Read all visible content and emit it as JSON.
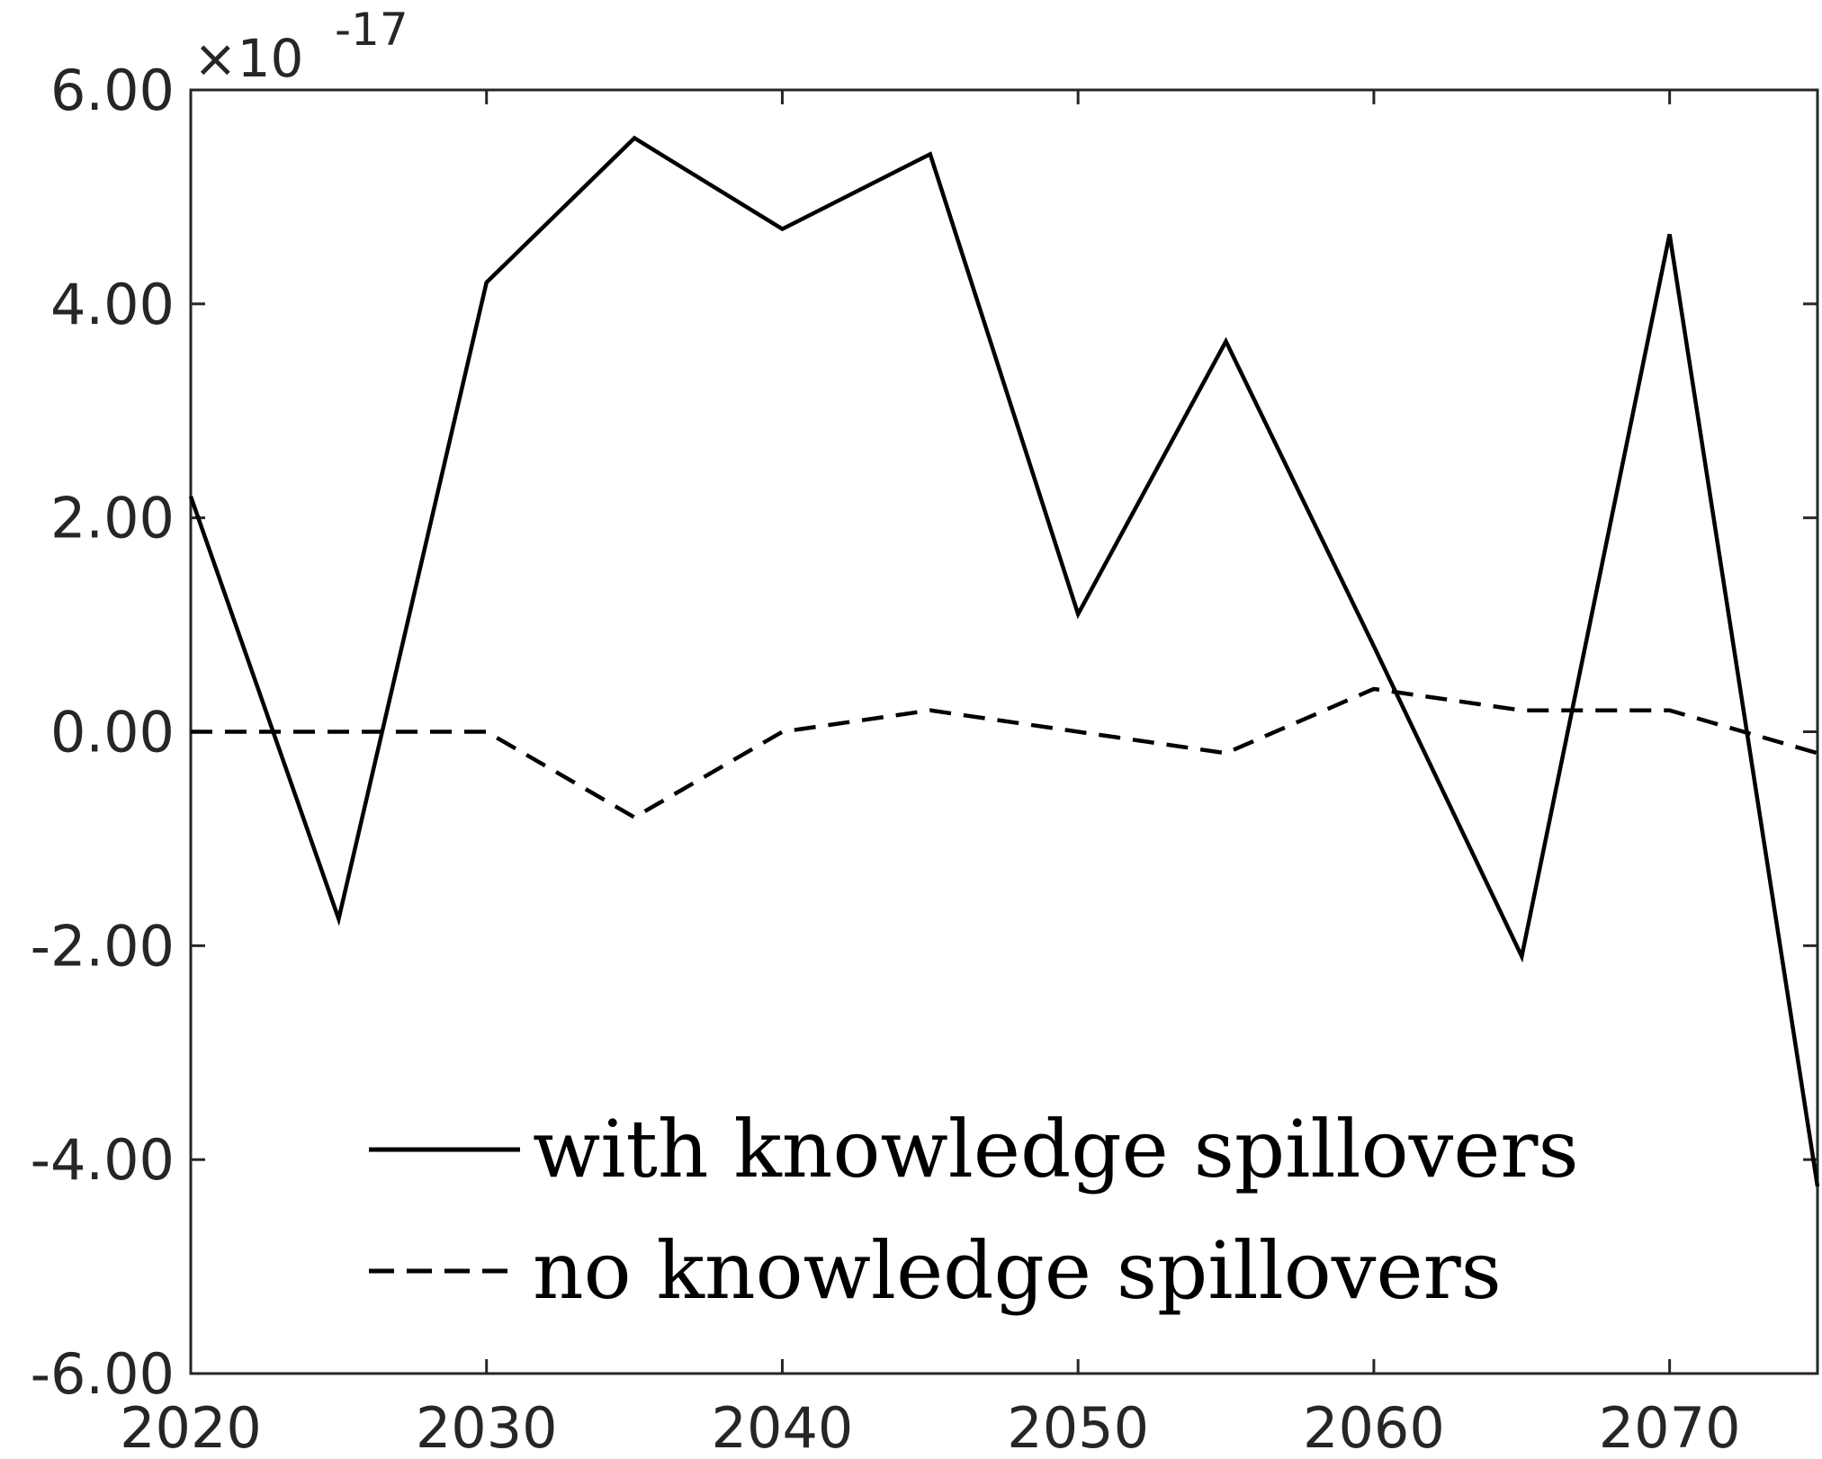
{
  "chart_data": {
    "type": "line",
    "title": "",
    "xlabel": "",
    "ylabel": "",
    "xlim": [
      2020,
      2075
    ],
    "ylim": [
      -6e-17,
      6e-17
    ],
    "x_ticks": [
      2020,
      2030,
      2040,
      2050,
      2060,
      2070
    ],
    "x_tick_labels": [
      "2020",
      "2030",
      "2040",
      "2050",
      "2060",
      "2070"
    ],
    "y_ticks": [
      -6,
      -4,
      -2,
      0,
      2,
      4,
      6
    ],
    "y_tick_labels": [
      "-6.00",
      "-4.00",
      "-2.00",
      "0.00",
      "2.00",
      "4.00",
      "6.00"
    ],
    "y_exponent": {
      "base": "×10",
      "power": "-17"
    },
    "grid": false,
    "legend_position": "bottom-center",
    "x": [
      2020,
      2025,
      2030,
      2035,
      2040,
      2045,
      2050,
      2055,
      2060,
      2065,
      2070,
      2075
    ],
    "series": [
      {
        "name": "with knowledge spillovers",
        "style": "solid",
        "color": "#000000",
        "values": [
          2.2e-17,
          -1.75e-17,
          4.2e-17,
          5.55e-17,
          4.7e-17,
          5.4e-17,
          1.1e-17,
          3.65e-17,
          8e-18,
          -2.1e-17,
          4.65e-17,
          -4.25e-17
        ]
      },
      {
        "name": "no knowledge spillovers",
        "style": "dashed",
        "color": "#000000",
        "values": [
          0,
          0,
          0,
          -8e-18,
          0,
          2e-18,
          0,
          -2e-18,
          4e-18,
          2e-18,
          2e-18,
          -2e-18
        ]
      }
    ]
  }
}
